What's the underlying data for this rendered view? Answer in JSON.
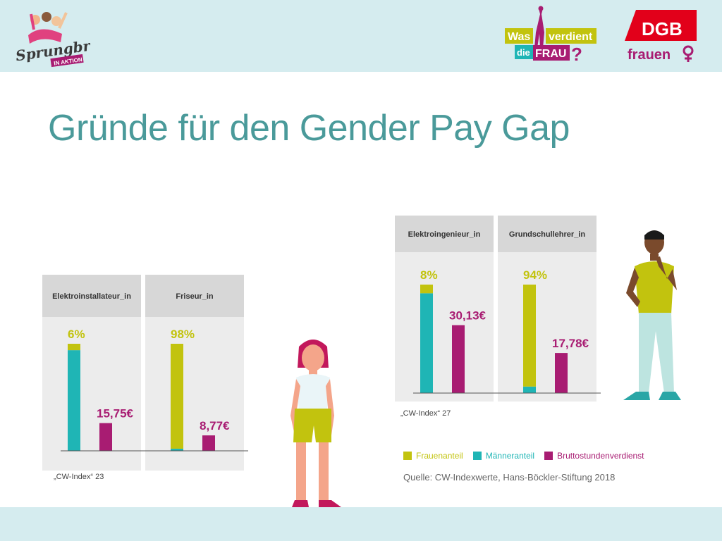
{
  "title": "Gründe für den Gender Pay Gap",
  "logos": {
    "sprungbrett": {
      "line1": "Sprungbrett",
      "line2": "IN AKTION"
    },
    "wvdf": {
      "was": "Was",
      "verdient": "verdient",
      "die": "die",
      "frau": "FRAU",
      "mark": "?"
    },
    "dgb": {
      "top": "DGB",
      "bottom": "frauen"
    }
  },
  "colors": {
    "frauenanteil": "#c2c30e",
    "maenneranteil": "#1fb5b5",
    "verdienst": "#a81c72",
    "title": "#4a9a9a",
    "band": "#d5ecef"
  },
  "chart_data": [
    {
      "type": "bar",
      "stacked_share": true,
      "panels": [
        {
          "label": "Elektroinstallateur_in",
          "frauenanteil_pct": 6,
          "maenneranteil_pct": 94,
          "pct_label": "6%",
          "verdienst_eur": 15.75,
          "eur_label": "15,75€"
        },
        {
          "label": "Friseur_in",
          "frauenanteil_pct": 98,
          "maenneranteil_pct": 2,
          "pct_label": "98%",
          "verdienst_eur": 8.77,
          "eur_label": "8,77€"
        }
      ],
      "note": "„CW-Index“ 23"
    },
    {
      "type": "bar",
      "stacked_share": true,
      "panels": [
        {
          "label": "Elektroingenieur_in",
          "frauenanteil_pct": 8,
          "maenneranteil_pct": 92,
          "pct_label": "8%",
          "verdienst_eur": 30.13,
          "eur_label": "30,13€"
        },
        {
          "label": "Grundschullehrer_in",
          "frauenanteil_pct": 94,
          "maenneranteil_pct": 6,
          "pct_label": "94%",
          "verdienst_eur": 17.78,
          "eur_label": "17,78€"
        }
      ],
      "note": "„CW-Index“ 27"
    }
  ],
  "legend": [
    {
      "label": "Frauenanteil",
      "color": "#c2c30e"
    },
    {
      "label": "Männeranteil",
      "color": "#1fb5b5"
    },
    {
      "label": "Bruttostundenverdienst",
      "color": "#a81c72"
    }
  ],
  "source": "Quelle: CW-Indexwerte, Hans-Böckler-Stiftung 2018"
}
